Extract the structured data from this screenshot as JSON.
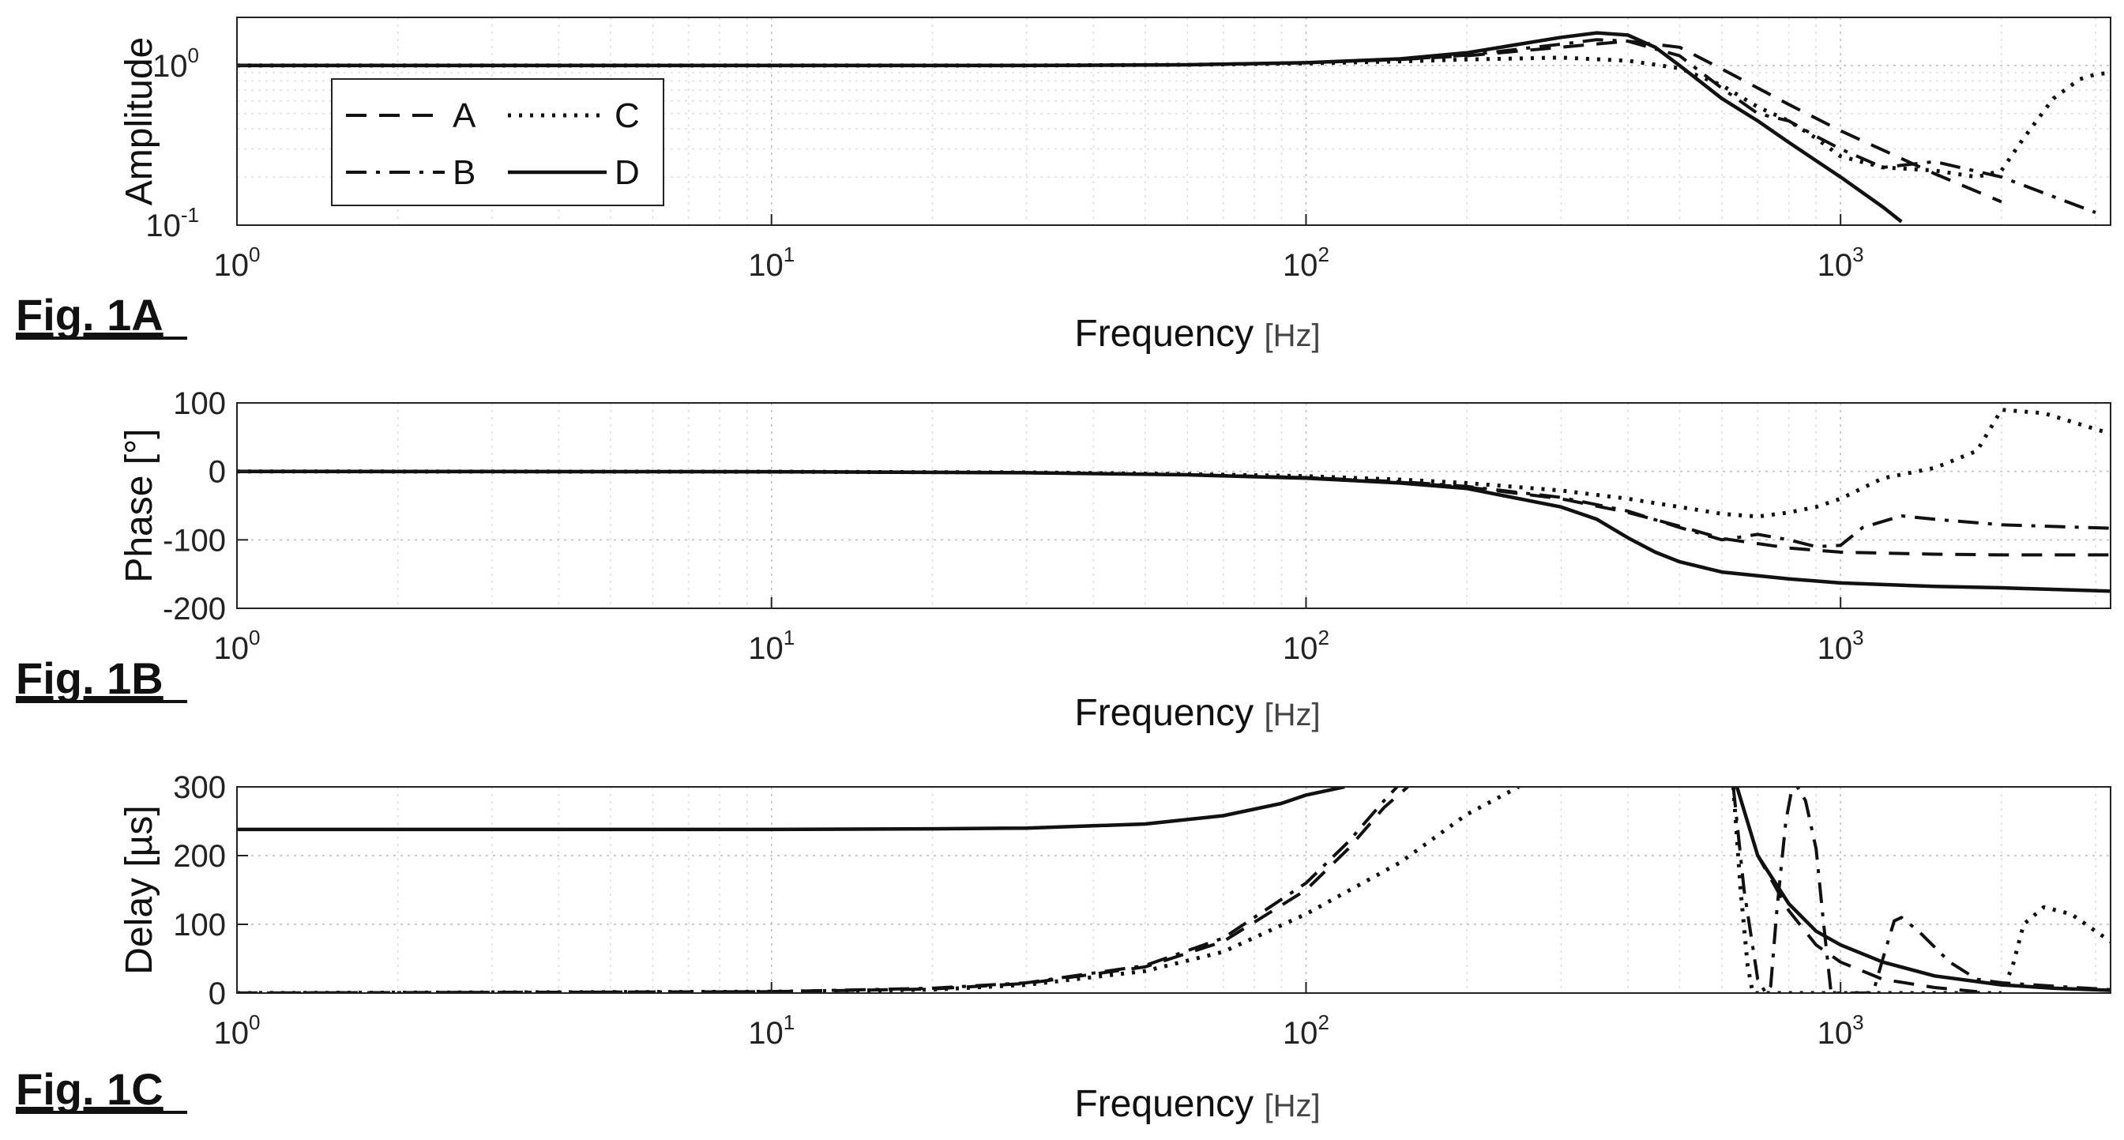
{
  "chart_data": [
    {
      "type": "line",
      "figure_label": "Fig. 1A",
      "xlabel": "Frequency",
      "xunit": "[Hz]",
      "ylabel": "Amplitude",
      "xscale": "log",
      "yscale": "log",
      "xlim": [
        1,
        3200
      ],
      "ylim": [
        0.1,
        2.0
      ],
      "xticks": [
        1,
        10,
        100,
        1000
      ],
      "xtick_labels": [
        {
          "base": "10",
          "exp": "0"
        },
        {
          "base": "10",
          "exp": "1"
        },
        {
          "base": "10",
          "exp": "2"
        },
        {
          "base": "10",
          "exp": "3"
        }
      ],
      "yticks": [
        0.1,
        1
      ],
      "ytick_labels": [
        {
          "base": "10",
          "exp": "-1"
        },
        {
          "base": "10",
          "exp": "0"
        }
      ],
      "grid": true,
      "legend": {
        "placement": "top-left",
        "columns": 2,
        "entries": [
          "A",
          "C",
          "B",
          "D"
        ]
      },
      "series": [
        {
          "name": "A",
          "style": "dashed",
          "x": [
            1,
            10,
            30,
            60,
            100,
            150,
            200,
            300,
            400,
            500,
            600,
            800,
            1000,
            1500,
            2000
          ],
          "y": [
            1,
            1,
            1,
            1.01,
            1.04,
            1.09,
            1.15,
            1.3,
            1.42,
            1.3,
            0.95,
            0.57,
            0.39,
            0.21,
            0.14
          ]
        },
        {
          "name": "B",
          "style": "dashdot",
          "x": [
            1,
            10,
            30,
            60,
            100,
            150,
            200,
            300,
            350,
            400,
            500,
            600,
            700,
            800,
            900,
            1000,
            1200,
            1500,
            2000,
            3000
          ],
          "y": [
            1,
            1,
            1,
            1.01,
            1.04,
            1.09,
            1.16,
            1.36,
            1.45,
            1.42,
            1.15,
            0.72,
            0.5,
            0.45,
            0.36,
            0.3,
            0.23,
            0.25,
            0.2,
            0.12
          ]
        },
        {
          "name": "C",
          "style": "dotted",
          "x": [
            1,
            10,
            30,
            60,
            100,
            150,
            200,
            300,
            400,
            500,
            600,
            700,
            800,
            900,
            1000,
            1200,
            1500,
            1800,
            2000,
            2200,
            2500,
            2800,
            3000,
            3200
          ],
          "y": [
            1,
            1,
            1,
            1.01,
            1.03,
            1.06,
            1.09,
            1.12,
            1.07,
            0.96,
            0.75,
            0.55,
            0.45,
            0.35,
            0.27,
            0.23,
            0.22,
            0.2,
            0.22,
            0.35,
            0.62,
            0.82,
            0.88,
            0.9
          ]
        },
        {
          "name": "D",
          "style": "solid",
          "x": [
            1,
            10,
            30,
            60,
            100,
            150,
            200,
            300,
            350,
            400,
            450,
            500,
            600,
            700,
            800,
            1000,
            1200,
            1300
          ],
          "y": [
            1,
            1,
            1,
            1.01,
            1.04,
            1.1,
            1.2,
            1.5,
            1.6,
            1.55,
            1.3,
            1.0,
            0.62,
            0.45,
            0.33,
            0.2,
            0.13,
            0.105
          ]
        }
      ]
    },
    {
      "type": "line",
      "figure_label": "Fig. 1B",
      "xlabel": "Frequency",
      "xunit": "[Hz]",
      "ylabel": "Phase [°]",
      "xscale": "log",
      "xlim": [
        1,
        3200
      ],
      "ylim": [
        -200,
        100
      ],
      "xticks": [
        1,
        10,
        100,
        1000
      ],
      "xtick_labels": [
        {
          "base": "10",
          "exp": "0"
        },
        {
          "base": "10",
          "exp": "1"
        },
        {
          "base": "10",
          "exp": "2"
        },
        {
          "base": "10",
          "exp": "3"
        }
      ],
      "yticks": [
        100,
        0,
        -100,
        -200
      ],
      "ytick_labels": [
        "100",
        "0",
        "-100",
        "-200"
      ],
      "grid": true,
      "series": [
        {
          "name": "A",
          "style": "dashed",
          "x": [
            1,
            10,
            30,
            60,
            100,
            150,
            200,
            300,
            400,
            500,
            600,
            800,
            1000,
            1500,
            2000,
            3200
          ],
          "y": [
            0,
            -0.5,
            -2,
            -5,
            -9,
            -16,
            -23,
            -40,
            -60,
            -80,
            -98,
            -112,
            -118,
            -121,
            -122,
            -122
          ]
        },
        {
          "name": "B",
          "style": "dashdot",
          "x": [
            1,
            10,
            30,
            60,
            100,
            150,
            200,
            300,
            400,
            500,
            600,
            700,
            800,
            900,
            1000,
            1100,
            1300,
            1500,
            2000,
            3200
          ],
          "y": [
            0,
            -0.5,
            -2,
            -5,
            -9,
            -15,
            -22,
            -38,
            -58,
            -82,
            -100,
            -92,
            -100,
            -110,
            -108,
            -82,
            -65,
            -70,
            -78,
            -83
          ]
        },
        {
          "name": "C",
          "style": "dotted",
          "x": [
            1,
            10,
            30,
            60,
            100,
            150,
            200,
            300,
            400,
            500,
            600,
            700,
            800,
            900,
            1000,
            1200,
            1500,
            1800,
            2000,
            2400,
            3200
          ],
          "y": [
            0,
            -0.5,
            -1.5,
            -4,
            -7,
            -12,
            -17,
            -28,
            -40,
            -52,
            -62,
            -66,
            -60,
            -52,
            -40,
            -10,
            5,
            30,
            90,
            85,
            55
          ]
        },
        {
          "name": "D",
          "style": "solid",
          "x": [
            1,
            10,
            30,
            60,
            100,
            150,
            200,
            300,
            350,
            400,
            450,
            500,
            600,
            800,
            1000,
            1500,
            2000,
            3200
          ],
          "y": [
            0,
            -0.5,
            -2,
            -5,
            -10,
            -17,
            -25,
            -52,
            -70,
            -97,
            -118,
            -132,
            -147,
            -157,
            -163,
            -168,
            -170,
            -175
          ]
        }
      ]
    },
    {
      "type": "line",
      "figure_label": "Fig. 1C",
      "xlabel": "Frequency",
      "xunit": "[Hz]",
      "ylabel": "Delay [µs]",
      "xscale": "log",
      "xlim": [
        1,
        3200
      ],
      "ylim": [
        0,
        300
      ],
      "xticks": [
        1,
        10,
        100,
        1000
      ],
      "xtick_labels": [
        {
          "base": "10",
          "exp": "0"
        },
        {
          "base": "10",
          "exp": "1"
        },
        {
          "base": "10",
          "exp": "2"
        },
        {
          "base": "10",
          "exp": "3"
        }
      ],
      "yticks": [
        0,
        100,
        200,
        300
      ],
      "ytick_labels": [
        "0",
        "100",
        "200",
        "300"
      ],
      "grid": true,
      "series": [
        {
          "name": "A",
          "style": "dashed",
          "x": [
            1,
            10,
            20,
            30,
            50,
            70,
            100,
            120,
            140,
            155
          ],
          "y": [
            0,
            2,
            6,
            14,
            38,
            75,
            150,
            210,
            270,
            300
          ]
        },
        {
          "name": "A",
          "style": "dashed",
          "x": [
            640,
            700,
            800,
            900,
            1000,
            1200,
            1500,
            1800
          ],
          "y": [
            300,
            200,
            120,
            70,
            45,
            20,
            8,
            2
          ]
        },
        {
          "name": "B",
          "style": "dashdot",
          "x": [
            1,
            10,
            20,
            30,
            50,
            70,
            100,
            120,
            140,
            148
          ],
          "y": [
            0,
            2,
            7,
            15,
            40,
            80,
            160,
            220,
            280,
            300
          ]
        },
        {
          "name": "B",
          "style": "dashdot",
          "x": [
            630,
            660,
            700,
            725,
            740,
            760,
            790,
            810,
            830,
            860,
            900,
            930,
            960,
            1050,
            1150,
            1200,
            1260,
            1300,
            1400,
            1600,
            1800,
            2000,
            2500,
            3200
          ],
          "y": [
            300,
            150,
            20,
            0,
            10,
            120,
            250,
            295,
            300,
            280,
            210,
            100,
            0,
            0,
            0,
            50,
            105,
            110,
            90,
            45,
            20,
            15,
            10,
            5
          ]
        },
        {
          "name": "C",
          "style": "dotted",
          "x": [
            1,
            10,
            20,
            30,
            50,
            70,
            100,
            150,
            200,
            250
          ],
          "y": [
            0,
            2,
            5,
            12,
            32,
            60,
            115,
            190,
            260,
            300
          ]
        },
        {
          "name": "C",
          "style": "dotted",
          "x": [
            630,
            650,
            670,
            685,
            700,
            730,
            800,
            900,
            1000,
            1200,
            1500,
            1800,
            2000,
            2100,
            2200,
            2400,
            2700,
            3000,
            3200
          ],
          "y": [
            300,
            150,
            40,
            0,
            0,
            0,
            0,
            0,
            0,
            0,
            0,
            0,
            0,
            40,
            100,
            125,
            115,
            90,
            75
          ]
        },
        {
          "name": "D",
          "style": "solid",
          "x": [
            1,
            10,
            20,
            30,
            50,
            70,
            90,
            100,
            110,
            118
          ],
          "y": [
            238,
            238,
            239,
            240,
            246,
            258,
            276,
            288,
            295,
            300
          ]
        },
        {
          "name": "D",
          "style": "solid",
          "x": [
            640,
            700,
            800,
            900,
            1000,
            1200,
            1500,
            2000,
            2500,
            3200
          ],
          "y": [
            300,
            200,
            130,
            90,
            70,
            45,
            25,
            12,
            7,
            4
          ]
        }
      ]
    }
  ]
}
